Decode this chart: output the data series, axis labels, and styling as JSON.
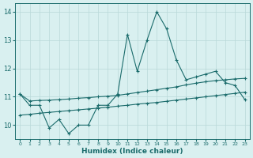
{
  "x": [
    0,
    1,
    2,
    3,
    4,
    5,
    6,
    7,
    8,
    9,
    10,
    11,
    12,
    13,
    14,
    15,
    16,
    17,
    18,
    19,
    20,
    21,
    22,
    23
  ],
  "y_main": [
    11.1,
    10.7,
    10.7,
    9.9,
    10.2,
    9.7,
    10.0,
    10.0,
    10.7,
    10.7,
    11.1,
    13.2,
    11.9,
    13.0,
    14.0,
    13.4,
    12.3,
    11.6,
    11.7,
    11.8,
    11.9,
    11.5,
    11.4,
    10.9
  ],
  "y_upper": [
    11.1,
    10.85,
    10.87,
    10.88,
    10.9,
    10.92,
    10.95,
    10.97,
    11.0,
    11.02,
    11.05,
    11.1,
    11.15,
    11.2,
    11.25,
    11.3,
    11.35,
    11.42,
    11.48,
    11.53,
    11.57,
    11.6,
    11.63,
    11.65
  ],
  "y_lower": [
    10.35,
    10.38,
    10.42,
    10.45,
    10.48,
    10.51,
    10.54,
    10.57,
    10.6,
    10.63,
    10.67,
    10.7,
    10.74,
    10.77,
    10.8,
    10.84,
    10.88,
    10.92,
    10.96,
    11.0,
    11.04,
    11.08,
    11.12,
    11.16
  ],
  "line_color": "#1a6b6b",
  "bg_color": "#d9f0f0",
  "grid_color": "#b8d8d8",
  "xlabel": "Humidex (Indice chaleur)",
  "ylim": [
    9.5,
    14.3
  ],
  "xlim": [
    -0.5,
    23.5
  ],
  "yticks": [
    10,
    11,
    12,
    13,
    14
  ],
  "xticks": [
    0,
    1,
    2,
    3,
    4,
    5,
    6,
    7,
    8,
    9,
    10,
    11,
    12,
    13,
    14,
    15,
    16,
    17,
    18,
    19,
    20,
    21,
    22,
    23
  ]
}
